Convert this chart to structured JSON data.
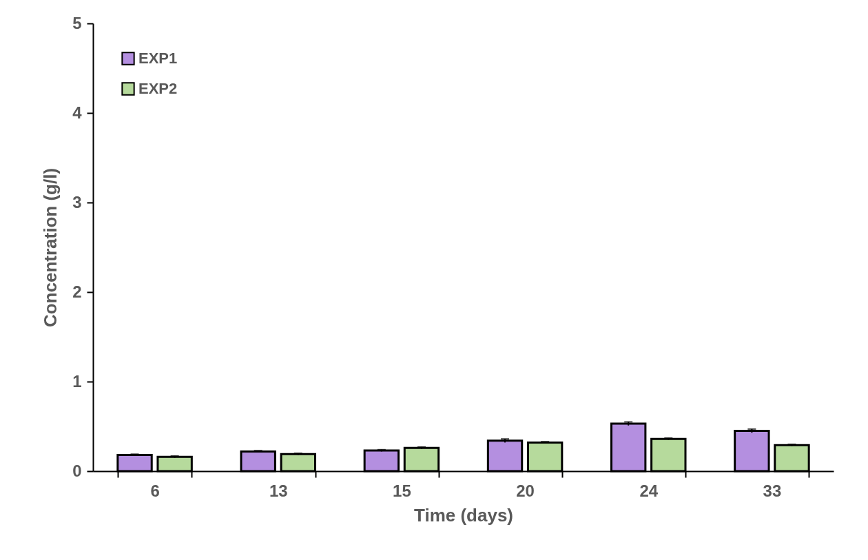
{
  "chart_data": {
    "type": "bar",
    "xlabel": "Time (days)",
    "ylabel": "Concentration (g/l)",
    "categories": [
      "6",
      "13",
      "15",
      "20",
      "24",
      "33"
    ],
    "series": [
      {
        "name": "EXP1",
        "color": "#b48fe0",
        "values": [
          0.18,
          0.22,
          0.23,
          0.34,
          0.53,
          0.45
        ],
        "errors": [
          0.01,
          0.01,
          0.01,
          0.02,
          0.02,
          0.02
        ]
      },
      {
        "name": "EXP2",
        "color": "#b6da9c",
        "values": [
          0.16,
          0.19,
          0.26,
          0.32,
          0.36,
          0.29
        ],
        "errors": [
          0.01,
          0.01,
          0.01,
          0.01,
          0.01,
          0.01
        ]
      }
    ],
    "ylim": [
      0,
      5
    ],
    "yticks": [
      0,
      1,
      2,
      3,
      4,
      5
    ],
    "grid": false,
    "legend": "top left"
  }
}
